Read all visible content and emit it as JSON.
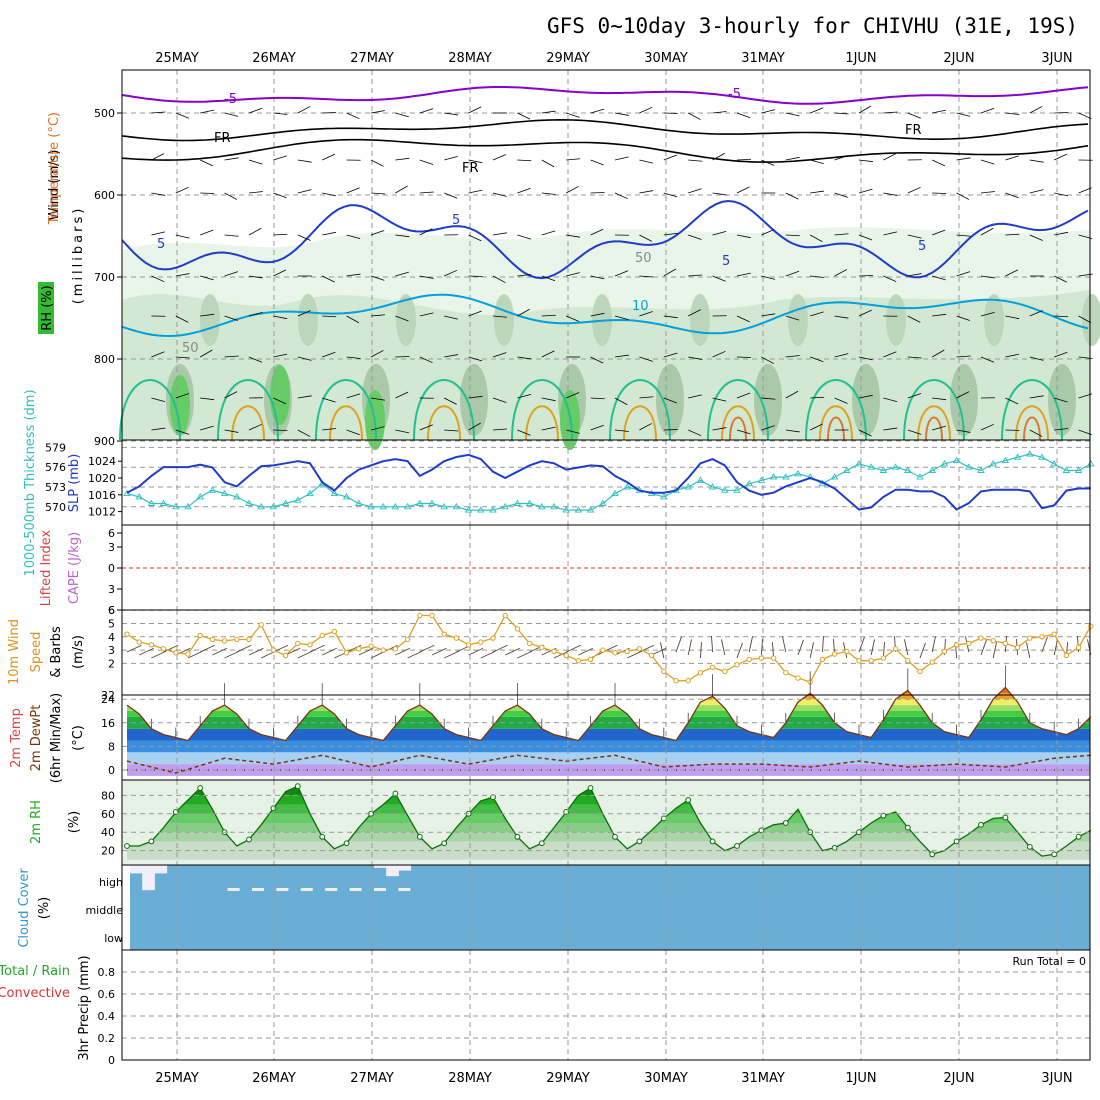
{
  "title": "GFS 0~10day 3-hourly for CHIVHU (31E, 19S)",
  "dates": [
    "25MAY",
    "26MAY",
    "27MAY",
    "28MAY",
    "29MAY",
    "30MAY",
    "31MAY",
    "1JUN",
    "2JUN",
    "3JUN"
  ],
  "colors": {
    "purple": "#8800cc",
    "blue": "#1e3ccc",
    "lightblue": "#00a0e0",
    "teal": "#20c090",
    "orange": "#e0a020",
    "brown": "#8b4513",
    "cyan": "#30c0c0",
    "cloud": "#6aaed6",
    "green": "#22cc22"
  },
  "panels": {
    "upper": {
      "labels": {
        "wind": "Wind (m/s)",
        "temperature": "Temperature (°C)",
        "rh": "RH (%)",
        "mb": "(millibars)"
      },
      "yticks": [
        "500",
        "600",
        "700",
        "800",
        "900"
      ],
      "contour_labels": {
        "m5": "-5",
        "fr": "FR",
        "p5": "5",
        "p10": "10",
        "rh50": "50"
      }
    },
    "slp": {
      "labels": {
        "thick": "1000-500mb Thickness (dm)",
        "slp": "SLP (mb)"
      },
      "yticks_left": [
        "579",
        "576",
        "573",
        "570"
      ],
      "yticks_right": [
        "1024",
        "1020",
        "1016",
        "1012"
      ]
    },
    "li": {
      "labels": {
        "li": "Lifted Index",
        "cape": "CAPE (J/kg)"
      },
      "yticks": [
        "6",
        "3",
        "0",
        "3",
        "6"
      ]
    },
    "wind10": {
      "labels": {
        "l1": "10m Wind",
        "l2": "Speed",
        "l3": "& Barbs",
        "unit": "(m/s)"
      },
      "yticks": [
        "6",
        "5",
        "4",
        "3",
        "2",
        "32"
      ]
    },
    "temp": {
      "labels": {
        "l1": "2m Temp",
        "l2": "2m DewPt",
        "l3": "(6hr Min/Max)",
        "unit": "(°C)"
      },
      "yticks": [
        "24",
        "16",
        "8",
        "0"
      ]
    },
    "rh": {
      "labels": {
        "l1": "2m RH",
        "unit": "(%)"
      },
      "yticks": [
        "80",
        "60",
        "40",
        "20"
      ]
    },
    "cloud": {
      "labels": {
        "l1": "Cloud Cover",
        "unit": "(%)"
      },
      "levels": [
        "high",
        "middle",
        "low"
      ]
    },
    "precip": {
      "labels": {
        "l1": "3hr Precip (mm)",
        "l2": "Total / Rain",
        "l3": "Convective"
      },
      "yticks": [
        "0.8",
        "0.6",
        "0.4",
        "0.2",
        "0"
      ],
      "run_total": "Run Total = 0"
    }
  },
  "chart_data": [
    {
      "type": "line",
      "name": "SLP (mb)",
      "x_unit": "3-hour step from 24 May 12Z",
      "x": [
        0,
        1,
        2,
        3,
        4,
        5,
        6,
        7,
        8,
        9,
        10,
        11,
        12,
        13,
        14,
        15,
        16,
        17,
        18,
        19,
        20,
        21,
        22,
        23,
        24,
        25,
        26,
        27,
        28,
        29,
        30,
        31,
        32,
        33,
        34,
        35,
        36,
        37,
        38,
        39,
        40,
        41,
        42,
        43,
        44,
        45,
        46,
        47,
        48,
        49,
        50,
        51,
        52,
        53,
        54,
        55,
        56,
        57,
        58,
        59,
        60,
        61,
        62,
        63,
        64,
        65,
        66,
        67,
        68,
        69,
        70,
        71,
        72,
        73,
        74,
        75,
        76,
        77,
        78,
        79
      ],
      "values": [
        1016.5,
        1018,
        1020.5,
        1022.6,
        1022.6,
        1022.6,
        1023.2,
        1022.5,
        1019,
        1018,
        1020.5,
        1022.8,
        1023,
        1023.5,
        1024,
        1023.5,
        1019,
        1017,
        1020,
        1022,
        1023,
        1024,
        1024.5,
        1024,
        1020.5,
        1022,
        1024,
        1025,
        1025.5,
        1024.5,
        1021.5,
        1020,
        1021.5,
        1023,
        1024,
        1023.5,
        1022,
        1022.5,
        1023,
        1022.8,
        1020.5,
        1019,
        1017,
        1016.5,
        1016.5,
        1017,
        1020,
        1023.5,
        1024.5,
        1023,
        1019,
        1017,
        1016,
        1016.5,
        1018,
        1019,
        1020,
        1019,
        1017.5,
        1015,
        1012.5,
        1013,
        1015.5,
        1017.2,
        1017.2,
        1016.8,
        1016.8,
        1015.5,
        1012.5,
        1014,
        1016.8,
        1017.2,
        1017.2,
        1017.2,
        1016.8,
        1012.8,
        1013.5,
        1017,
        1017.5,
        1017.5
      ],
      "ylim": [
        1010,
        1028
      ]
    },
    {
      "type": "line",
      "name": "1000-500mb Thickness (dm)",
      "x": [
        0,
        1,
        2,
        3,
        4,
        5,
        6,
        7,
        8,
        9,
        10,
        11,
        12,
        13,
        14,
        15,
        16,
        17,
        18,
        19,
        20,
        21,
        22,
        23,
        24,
        25,
        26,
        27,
        28,
        29,
        30,
        31,
        32,
        33,
        34,
        35,
        36,
        37,
        38,
        39,
        40,
        41,
        42,
        43,
        44,
        45,
        46,
        47,
        48,
        49,
        50,
        51,
        52,
        53,
        54,
        55,
        56,
        57,
        58,
        59,
        60,
        61,
        62,
        63,
        64,
        65,
        66,
        67,
        68,
        69,
        70,
        71,
        72,
        73,
        74,
        75,
        76,
        77,
        78,
        79
      ],
      "values": [
        572,
        571.5,
        570.5,
        570.5,
        570,
        570,
        571.5,
        572.5,
        572,
        571.5,
        570.5,
        570,
        570,
        570.5,
        571,
        572,
        573.5,
        572,
        571.5,
        570.5,
        570,
        570,
        570,
        570,
        570.5,
        570.5,
        570,
        570,
        569.5,
        569.5,
        569.5,
        570,
        570.5,
        570.5,
        570,
        570,
        569.5,
        569.5,
        569.5,
        570.5,
        572,
        573,
        572.5,
        572,
        571.5,
        572.5,
        573,
        574,
        573,
        572.5,
        572.5,
        573.5,
        574,
        574.5,
        574.5,
        575,
        574.5,
        573.5,
        574.5,
        575.5,
        576.5,
        576,
        575.5,
        576,
        575.5,
        574.5,
        575.5,
        576.5,
        577,
        576,
        575.5,
        576.5,
        577,
        577.5,
        578,
        577.5,
        576.5,
        575.5,
        575.5,
        576.5
      ],
      "ylim": [
        568,
        580
      ]
    },
    {
      "type": "line",
      "name": "10m Wind Speed (m/s)",
      "x": [
        0,
        1,
        2,
        3,
        4,
        5,
        6,
        7,
        8,
        9,
        10,
        11,
        12,
        13,
        14,
        15,
        16,
        17,
        18,
        19,
        20,
        21,
        22,
        23,
        24,
        25,
        26,
        27,
        28,
        29,
        30,
        31,
        32,
        33,
        34,
        35,
        36,
        37,
        38,
        39,
        40,
        41,
        42,
        43,
        44,
        45,
        46,
        47,
        48,
        49,
        50,
        51,
        52,
        53,
        54,
        55,
        56,
        57,
        58,
        59,
        60,
        61,
        62,
        63,
        64,
        65,
        66,
        67,
        68,
        69,
        70,
        71,
        72,
        73,
        74,
        75,
        76,
        77,
        78,
        79
      ],
      "values": [
        4.2,
        3.6,
        3.4,
        3.1,
        2.8,
        2.7,
        4.1,
        3.8,
        3.7,
        3.8,
        3.8,
        4.9,
        3,
        2.6,
        3.5,
        3.4,
        4.1,
        4.4,
        2.8,
        3.1,
        3.3,
        3,
        3.1,
        3.8,
        5.6,
        5.6,
        4.2,
        3.9,
        3.4,
        3.6,
        3.9,
        5.6,
        4.6,
        3.5,
        3.2,
        2.9,
        2.6,
        2.2,
        2.3,
        3,
        2.8,
        2.9,
        3.1,
        2.6,
        1.4,
        0.7,
        0.7,
        1.3,
        1.7,
        1.4,
        1.9,
        2.3,
        2.4,
        2.4,
        1.3,
        0.9,
        0.6,
        2.3,
        2.7,
        2.9,
        2.2,
        2.2,
        2.4,
        3.1,
        2.2,
        1.4,
        2.1,
        2.9,
        3.4,
        3.5,
        3.9,
        3.7,
        3.5,
        3.2,
        3.9,
        4,
        4.2,
        2.6,
        3.2,
        4.8
      ],
      "ylim": [
        0,
        6
      ]
    },
    {
      "type": "area",
      "name": "2m Temp (°C)",
      "x": [
        0,
        1,
        2,
        3,
        4,
        5,
        6,
        7,
        8,
        9,
        10,
        11,
        12,
        13,
        14,
        15,
        16,
        17,
        18,
        19,
        20,
        21,
        22,
        23,
        24,
        25,
        26,
        27,
        28,
        29,
        30,
        31,
        32,
        33,
        34,
        35,
        36,
        37,
        38,
        39,
        40,
        41,
        42,
        43,
        44,
        45,
        46,
        47,
        48,
        49,
        50,
        51,
        52,
        53,
        54,
        55,
        56,
        57,
        58,
        59,
        60,
        61,
        62,
        63,
        64,
        65,
        66,
        67,
        68,
        69,
        70,
        71,
        72,
        73,
        74,
        75,
        76,
        77,
        78,
        79
      ],
      "values": [
        22,
        19,
        14,
        12,
        11,
        10,
        15,
        20,
        22,
        19,
        14,
        12,
        11,
        10,
        15,
        20,
        22,
        19,
        14,
        12,
        11,
        10,
        15,
        20,
        22,
        19,
        14,
        12,
        11,
        10,
        15,
        20,
        22,
        19,
        14,
        12,
        11,
        10,
        15,
        20,
        22,
        19,
        14,
        12,
        11,
        10,
        16,
        23,
        25,
        21,
        15,
        13,
        12,
        11,
        16,
        23,
        26,
        22,
        16,
        13,
        12,
        11,
        17,
        24,
        27,
        22,
        16,
        13,
        12,
        11,
        17,
        24,
        28,
        23,
        16,
        14,
        13,
        12,
        14,
        18
      ],
      "ylim": [
        -2,
        28
      ]
    },
    {
      "type": "line",
      "name": "2m DewPt (°C)",
      "x": [
        0,
        4,
        8,
        12,
        16,
        20,
        24,
        28,
        32,
        36,
        40,
        44,
        48,
        52,
        56,
        60,
        64,
        68,
        72,
        76,
        79
      ],
      "values": [
        3,
        -1,
        4,
        2,
        5,
        1,
        5,
        2,
        5,
        3,
        5,
        1,
        2,
        2,
        1,
        3,
        1,
        2,
        1,
        4,
        5
      ],
      "ylim": [
        -2,
        28
      ]
    },
    {
      "type": "area",
      "name": "2m RH (%)",
      "x": [
        0,
        1,
        2,
        3,
        4,
        5,
        6,
        7,
        8,
        9,
        10,
        11,
        12,
        13,
        14,
        15,
        16,
        17,
        18,
        19,
        20,
        21,
        22,
        23,
        24,
        25,
        26,
        27,
        28,
        29,
        30,
        31,
        32,
        33,
        34,
        35,
        36,
        37,
        38,
        39,
        40,
        41,
        42,
        43,
        44,
        45,
        46,
        47,
        48,
        49,
        50,
        51,
        52,
        53,
        54,
        55,
        56,
        57,
        58,
        59,
        60,
        61,
        62,
        63,
        64,
        65,
        66,
        67,
        68,
        69,
        70,
        71,
        72,
        73,
        74,
        75,
        76,
        77,
        78,
        79
      ],
      "values": [
        25,
        25,
        30,
        45,
        62,
        75,
        88,
        65,
        40,
        25,
        32,
        48,
        66,
        84,
        90,
        60,
        35,
        22,
        28,
        45,
        60,
        70,
        82,
        58,
        35,
        22,
        28,
        45,
        60,
        74,
        78,
        55,
        35,
        22,
        28,
        45,
        62,
        80,
        88,
        60,
        35,
        22,
        30,
        42,
        55,
        66,
        75,
        50,
        30,
        20,
        25,
        35,
        42,
        48,
        50,
        65,
        40,
        20,
        23,
        30,
        40,
        50,
        58,
        62,
        45,
        30,
        16,
        20,
        30,
        38,
        48,
        55,
        56,
        40,
        24,
        14,
        16,
        25,
        35,
        42
      ],
      "ylim": [
        10,
        95
      ]
    },
    {
      "type": "bar",
      "name": "Cloud Cover high (%)",
      "x": [
        0,
        1,
        2,
        3,
        4,
        5,
        6,
        7,
        8,
        9,
        10,
        11,
        12,
        13,
        14,
        15,
        16,
        17,
        18,
        19,
        20,
        21,
        22,
        23,
        24,
        25,
        26,
        27,
        28,
        29,
        30,
        31,
        32,
        33,
        34,
        35,
        36,
        37,
        38,
        39,
        40,
        41,
        42,
        43,
        44,
        45,
        46,
        47,
        48,
        49,
        50,
        51,
        52,
        53,
        54,
        55,
        56,
        57,
        58,
        59,
        60,
        61,
        62,
        63,
        64,
        65,
        66,
        67,
        68,
        69,
        70,
        71,
        72,
        73,
        74,
        75,
        76,
        77,
        78,
        79
      ],
      "values": [
        30,
        90,
        30,
        0,
        0,
        0,
        0,
        0,
        0,
        0,
        0,
        0,
        0,
        0,
        0,
        0,
        0,
        0,
        0,
        0,
        10,
        40,
        20,
        0,
        0,
        0,
        0,
        0,
        0,
        0,
        0,
        0,
        0,
        0,
        0,
        0,
        0,
        0,
        0,
        0,
        0,
        0,
        0,
        0,
        0,
        0,
        0,
        0,
        0,
        0,
        0,
        0,
        0,
        0,
        0,
        0,
        0,
        0,
        0,
        0,
        0,
        0,
        0,
        0,
        0,
        0,
        0,
        0,
        0,
        0,
        0,
        0,
        0,
        0,
        0,
        0,
        0,
        0,
        0,
        0
      ],
      "ylim": [
        0,
        100
      ]
    },
    {
      "type": "bar",
      "name": "3hr Precip (mm)",
      "x": [
        0,
        79
      ],
      "values": [
        0,
        0
      ],
      "ylim": [
        0,
        1
      ]
    }
  ]
}
